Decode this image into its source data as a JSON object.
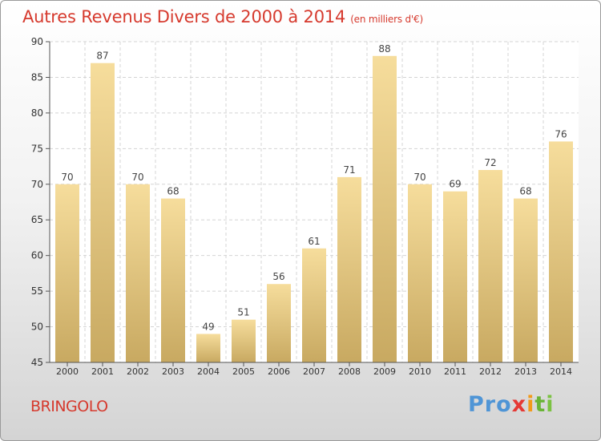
{
  "title": "Autres Revenus Divers de 2000 à 2014",
  "subtitle": "(en milliers d'€)",
  "commune": "BRINGOLO",
  "logo": {
    "p1": "Pro",
    "p2": "x",
    "p3": "i",
    "p4": "t",
    "p5": "i"
  },
  "colors": {
    "title": "#d63a2e",
    "bar_light": "#f6dd9c",
    "bar_dark": "#c8a961",
    "axis": "#555555"
  },
  "chart_data": {
    "type": "bar",
    "title": "Autres Revenus Divers de 2000 à 2014",
    "subtitle": "(en milliers d'€)",
    "xlabel": "",
    "ylabel": "",
    "ylim": [
      45,
      90
    ],
    "yticks": [
      45,
      50,
      55,
      60,
      65,
      70,
      75,
      80,
      85,
      90
    ],
    "grid": true,
    "categories": [
      "2000",
      "2001",
      "2002",
      "2003",
      "2004",
      "2005",
      "2006",
      "2007",
      "2008",
      "2009",
      "2010",
      "2011",
      "2012",
      "2013",
      "2014"
    ],
    "values": [
      70,
      87,
      70,
      68,
      49,
      51,
      56,
      61,
      71,
      88,
      70,
      69,
      72,
      68,
      76
    ]
  }
}
